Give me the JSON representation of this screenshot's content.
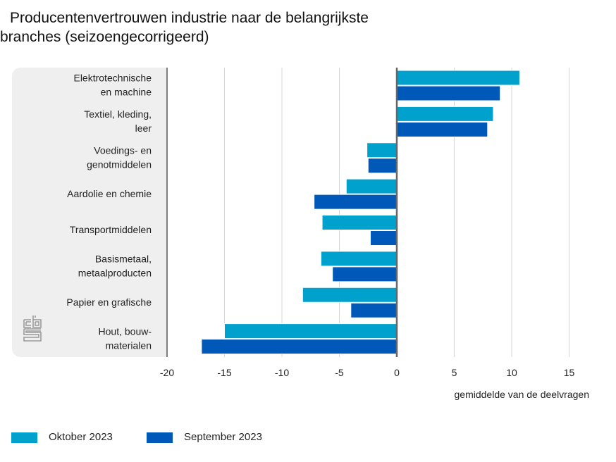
{
  "chart_data": {
    "type": "bar",
    "orientation": "horizontal",
    "title": "Producentenvertrouwen industrie naar de belangrijkste branches (seizoengecorrigeerd)",
    "title_lines": [
      "Producentenvertrouwen industrie naar de belangrijkste",
      "branches (seizoengecorrigeerd)"
    ],
    "xlabel": "gemiddelde van de deelvragen",
    "ylabel": "",
    "xlim": [
      -20,
      17
    ],
    "xticks": [
      -20,
      -15,
      -10,
      -5,
      0,
      5,
      10,
      15
    ],
    "grid": true,
    "legend_position": "bottom-left",
    "categories": [
      [
        "Elektrotechnische",
        "en machine"
      ],
      [
        "Textiel, kleding,",
        "leer"
      ],
      [
        "Voedings- en",
        "genotmiddelen"
      ],
      [
        "Aardolie en chemie"
      ],
      [
        "Transportmiddelen"
      ],
      [
        "Basismetaal,",
        "metaalproducten"
      ],
      [
        "Papier en grafische"
      ],
      [
        "Hout, bouw-",
        "materialen"
      ]
    ],
    "series": [
      {
        "name": "Oktober 2023",
        "color": "#00a1cd",
        "values": [
          10.7,
          8.4,
          -2.6,
          -4.4,
          -6.5,
          -6.6,
          -8.2,
          -15.0
        ]
      },
      {
        "name": "September 2023",
        "color": "#0058b8",
        "values": [
          9.0,
          7.9,
          -2.5,
          -7.2,
          -2.3,
          -5.6,
          -4.0,
          -17.0
        ]
      }
    ]
  },
  "logo": {
    "name": "cbs",
    "color": "#9a9a9a"
  }
}
